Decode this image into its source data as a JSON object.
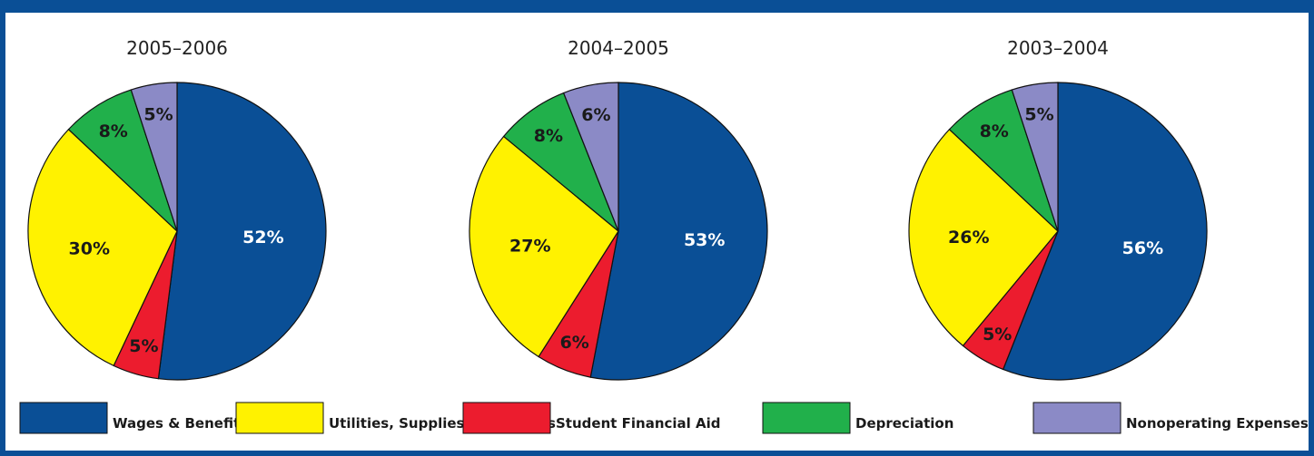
{
  "chart_data": [
    {
      "type": "pie",
      "title": "2005–2006",
      "slices": [
        {
          "label": "Wages & Benefits",
          "value": 52,
          "text": "52%"
        },
        {
          "label": "Student Financial Aid",
          "value": 5,
          "text": "5%"
        },
        {
          "label": "Utilities, Supplies, & Services",
          "value": 30,
          "text": "30%"
        },
        {
          "label": "Depreciation",
          "value": 8,
          "text": "8%"
        },
        {
          "label": "Nonoperating Expenses",
          "value": 5,
          "text": "5%"
        }
      ]
    },
    {
      "type": "pie",
      "title": "2004–2005",
      "slices": [
        {
          "label": "Wages & Benefits",
          "value": 53,
          "text": "53%"
        },
        {
          "label": "Student Financial Aid",
          "value": 6,
          "text": "6%"
        },
        {
          "label": "Utilities, Supplies, & Services",
          "value": 27,
          "text": "27%"
        },
        {
          "label": "Depreciation",
          "value": 8,
          "text": "8%"
        },
        {
          "label": "Nonoperating Expenses",
          "value": 6,
          "text": "6%"
        }
      ]
    },
    {
      "type": "pie",
      "title": "2003–2004",
      "slices": [
        {
          "label": "Wages & Benefits",
          "value": 56,
          "text": "56%"
        },
        {
          "label": "Student Financial Aid",
          "value": 5,
          "text": "5%"
        },
        {
          "label": "Utilities, Supplies, & Services",
          "value": 26,
          "text": "26%"
        },
        {
          "label": "Depreciation",
          "value": 8,
          "text": "8%"
        },
        {
          "label": "Nonoperating Expenses",
          "value": 5,
          "text": "5%"
        }
      ]
    }
  ],
  "legend": [
    {
      "label": "Wages & Benefits",
      "color": "#0a4f96"
    },
    {
      "label": "Utilities, Supplies, & Services",
      "color": "#fff200"
    },
    {
      "label": "Student Financial Aid",
      "color": "#ec1c2e"
    },
    {
      "label": "Depreciation",
      "color": "#21b04b"
    },
    {
      "label": "Nonoperating Expenses",
      "color": "#8b8ac6"
    }
  ],
  "label_colors": {
    "Wages & Benefits": "#ffffff",
    "Utilities, Supplies, & Services": "#1a1a1a",
    "Student Financial Aid": "#1a1a1a",
    "Depreciation": "#1a1a1a",
    "Nonoperating Expenses": "#1a1a1a"
  }
}
